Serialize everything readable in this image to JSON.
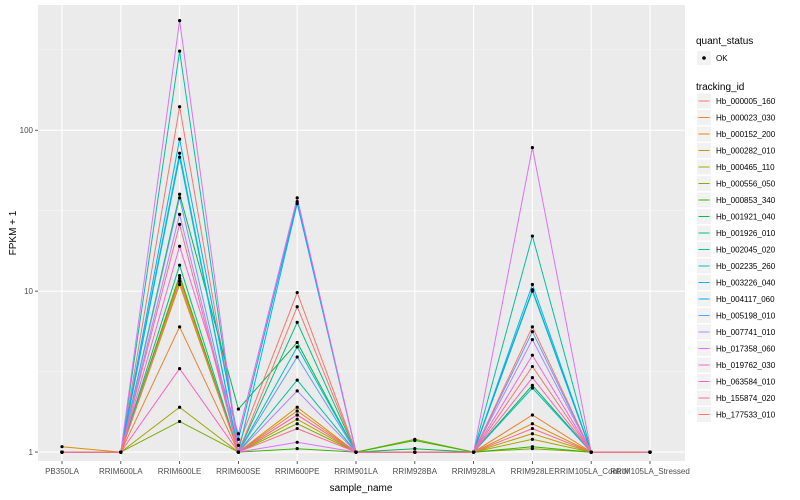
{
  "chart_data": {
    "type": "line",
    "xlabel": "sample_name",
    "ylabel": "FPKM + 1",
    "y_scale": "log10",
    "ylim": [
      0.88,
      600
    ],
    "y_ticks": [
      1,
      10,
      100
    ],
    "y_tick_labels": [
      "1",
      "10",
      "100"
    ],
    "grid": true,
    "legend_position": "right",
    "categories": [
      "PB350LA",
      "RRIM600LA",
      "RRIM600LE",
      "RRIM600SE",
      "RRIM600PE",
      "RRIM901LA",
      "RRIM928BA",
      "RRIM928LA",
      "RRIM928LE",
      "RRIM105LA_Control",
      "RRIM105LA_Stressed"
    ],
    "point_legend": {
      "title": "quant_status",
      "entries": [
        "OK"
      ]
    },
    "line_legend_title": "tracking_id",
    "series": [
      {
        "name": "Hb_000005_160",
        "color": "#F8766D",
        "values": [
          1.0,
          1.0,
          140,
          1.1,
          9.8,
          1.0,
          1.0,
          1.0,
          3.4,
          1.0,
          1.0
        ]
      },
      {
        "name": "Hb_000023_030",
        "color": "#EA8331",
        "values": [
          1.0,
          1.0,
          6.0,
          1.0,
          1.8,
          1.0,
          1.0,
          1.0,
          1.7,
          1.0,
          1.0
        ]
      },
      {
        "name": "Hb_000152_200",
        "color": "#D89000",
        "values": [
          1.08,
          1.0,
          12.0,
          1.0,
          1.9,
          1.0,
          1.0,
          1.0,
          1.5,
          1.0,
          1.0
        ]
      },
      {
        "name": "Hb_000282_010",
        "color": "#C09B00",
        "values": [
          1.0,
          1.0,
          11.0,
          1.0,
          1.6,
          1.0,
          1.0,
          1.0,
          1.3,
          1.0,
          1.0
        ]
      },
      {
        "name": "Hb_000465_110",
        "color": "#A3A500",
        "values": [
          1.0,
          1.0,
          1.9,
          1.0,
          1.7,
          1.0,
          1.0,
          1.0,
          1.2,
          1.0,
          1.0
        ]
      },
      {
        "name": "Hb_000556_050",
        "color": "#7CAE00",
        "values": [
          1.0,
          1.0,
          1.55,
          1.0,
          1.5,
          1.0,
          1.2,
          1.0,
          1.05,
          1.0,
          1.0
        ]
      },
      {
        "name": "Hb_000853_340",
        "color": "#39B600",
        "values": [
          1.0,
          1.0,
          12.5,
          1.0,
          1.05,
          1.0,
          1.18,
          1.0,
          1.08,
          1.0,
          1.0
        ]
      },
      {
        "name": "Hb_001921_040",
        "color": "#00BB4E",
        "values": [
          1.0,
          1.0,
          40,
          1.85,
          4.8,
          1.0,
          1.05,
          1.0,
          2.6,
          1.0,
          1.0
        ]
      },
      {
        "name": "Hb_001926_010",
        "color": "#00BF7D",
        "values": [
          1.0,
          1.0,
          14.5,
          1.0,
          6.4,
          1.0,
          1.0,
          1.0,
          10.0,
          1.0,
          1.0
        ]
      },
      {
        "name": "Hb_002045_020",
        "color": "#00C1A3",
        "values": [
          1.0,
          1.0,
          310,
          1.0,
          2.8,
          1.0,
          1.0,
          1.0,
          22.0,
          1.0,
          1.0
        ]
      },
      {
        "name": "Hb_002235_260",
        "color": "#00BFC4",
        "values": [
          1.0,
          1.0,
          72,
          1.0,
          4.5,
          1.0,
          1.0,
          1.0,
          2.5,
          1.0,
          1.0
        ]
      },
      {
        "name": "Hb_003226_040",
        "color": "#00B9E3",
        "values": [
          1.0,
          1.0,
          68,
          1.0,
          35,
          1.0,
          1.0,
          1.0,
          11.0,
          1.0,
          1.0
        ]
      },
      {
        "name": "Hb_004117_060",
        "color": "#00ADFA",
        "values": [
          1.0,
          1.0,
          88,
          1.2,
          36,
          1.0,
          1.0,
          1.0,
          10.2,
          1.0,
          1.0
        ]
      },
      {
        "name": "Hb_005198_010",
        "color": "#619CFF",
        "values": [
          1.0,
          1.0,
          38,
          1.0,
          3.9,
          1.0,
          1.0,
          1.0,
          5.6,
          1.0,
          1.0
        ]
      },
      {
        "name": "Hb_007741_010",
        "color": "#AE87FF",
        "values": [
          1.0,
          1.0,
          30,
          1.0,
          2.4,
          1.0,
          1.0,
          1.0,
          5.0,
          1.0,
          1.0
        ]
      },
      {
        "name": "Hb_017358_060",
        "color": "#DB72FB",
        "values": [
          1.0,
          1.0,
          480,
          1.0,
          1.15,
          1.0,
          1.0,
          1.0,
          78,
          1.0,
          1.0
        ]
      },
      {
        "name": "Hb_019762_030",
        "color": "#F564E3",
        "values": [
          1.0,
          1.0,
          19,
          1.3,
          38,
          1.0,
          1.0,
          1.0,
          4.0,
          1.0,
          1.0
        ]
      },
      {
        "name": "Hb_063584_010",
        "color": "#FF61C3",
        "values": [
          1.0,
          1.0,
          3.3,
          1.0,
          1.7,
          1.0,
          1.0,
          1.0,
          2.9,
          1.0,
          1.0
        ]
      },
      {
        "name": "Hb_155874_020",
        "color": "#FF6C91",
        "values": [
          1.0,
          1.0,
          26,
          1.0,
          1.4,
          1.0,
          1.0,
          1.0,
          1.4,
          1.0,
          1.0
        ]
      },
      {
        "name": "Hb_177533_010",
        "color": "#F8766D",
        "values": [
          1.0,
          1.0,
          11.5,
          1.0,
          8.0,
          1.0,
          1.0,
          1.0,
          6.0,
          1.0,
          1.0
        ]
      }
    ]
  }
}
